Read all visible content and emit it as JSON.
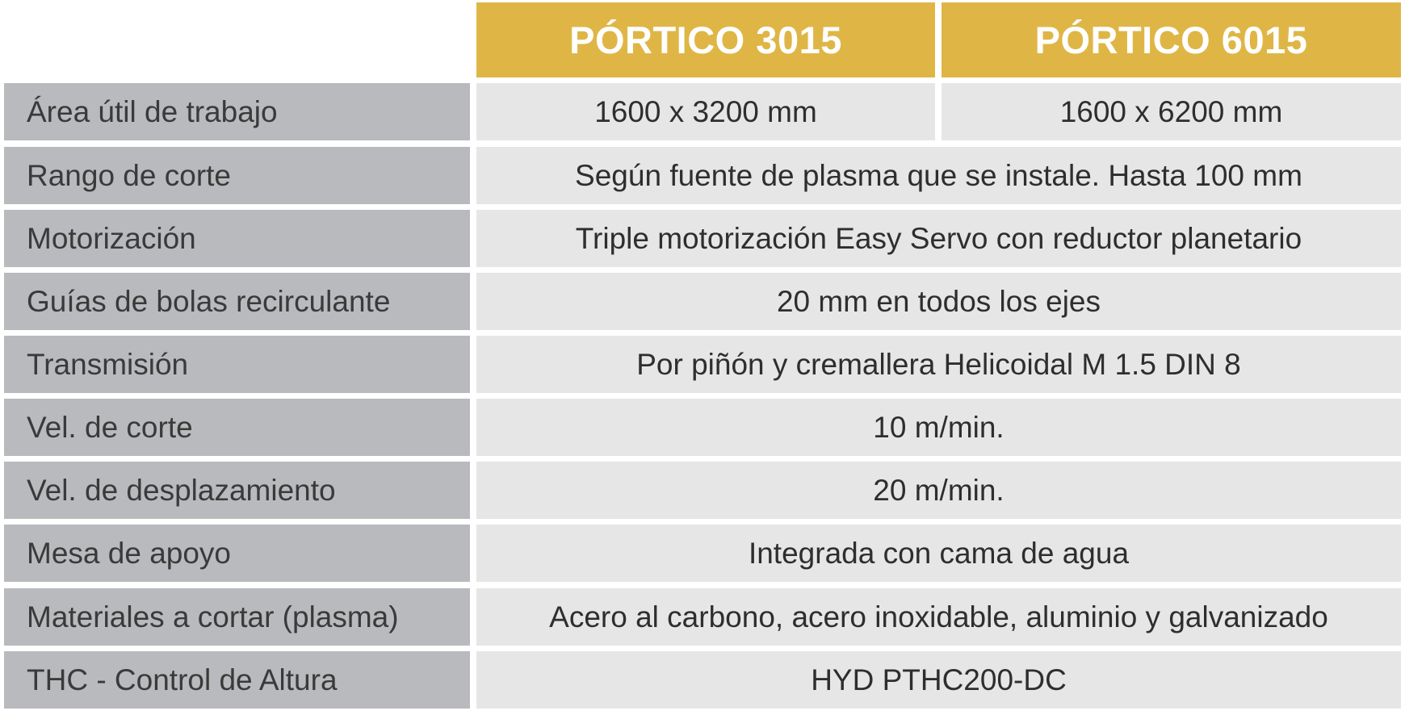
{
  "header": {
    "col1": "PÓRTICO 3015",
    "col2": "PÓRTICO 6015"
  },
  "rows": [
    {
      "label": "Área útil de trabajo",
      "col1": "1600 x 3200 mm",
      "col2": "1600 x 6200 mm"
    },
    {
      "label": "Rango de corte",
      "value": "Según fuente de plasma que se instale. Hasta 100 mm"
    },
    {
      "label": "Motorización",
      "value": "Triple motorización Easy Servo con reductor planetario"
    },
    {
      "label": "Guías de bolas recirculante",
      "value": "20 mm en todos los ejes"
    },
    {
      "label": "Transmisión",
      "value": "Por piñón y cremallera Helicoidal M 1.5 DIN 8"
    },
    {
      "label": "Vel. de corte",
      "value": "10 m/min."
    },
    {
      "label": "Vel. de desplazamiento",
      "value": "20 m/min."
    },
    {
      "label": "Mesa de apoyo",
      "value": "Integrada con cama de agua"
    },
    {
      "label": "Materiales a cortar (plasma)",
      "value": "Acero al carbono, acero inoxidable, aluminio y galvanizado"
    },
    {
      "label": "THC - Control de Altura",
      "value": "HYD PTHC200-DC"
    }
  ],
  "colors": {
    "header_gold": "#dfb646",
    "label_gray": "#b9babd",
    "value_gray": "#e6e6e6"
  }
}
